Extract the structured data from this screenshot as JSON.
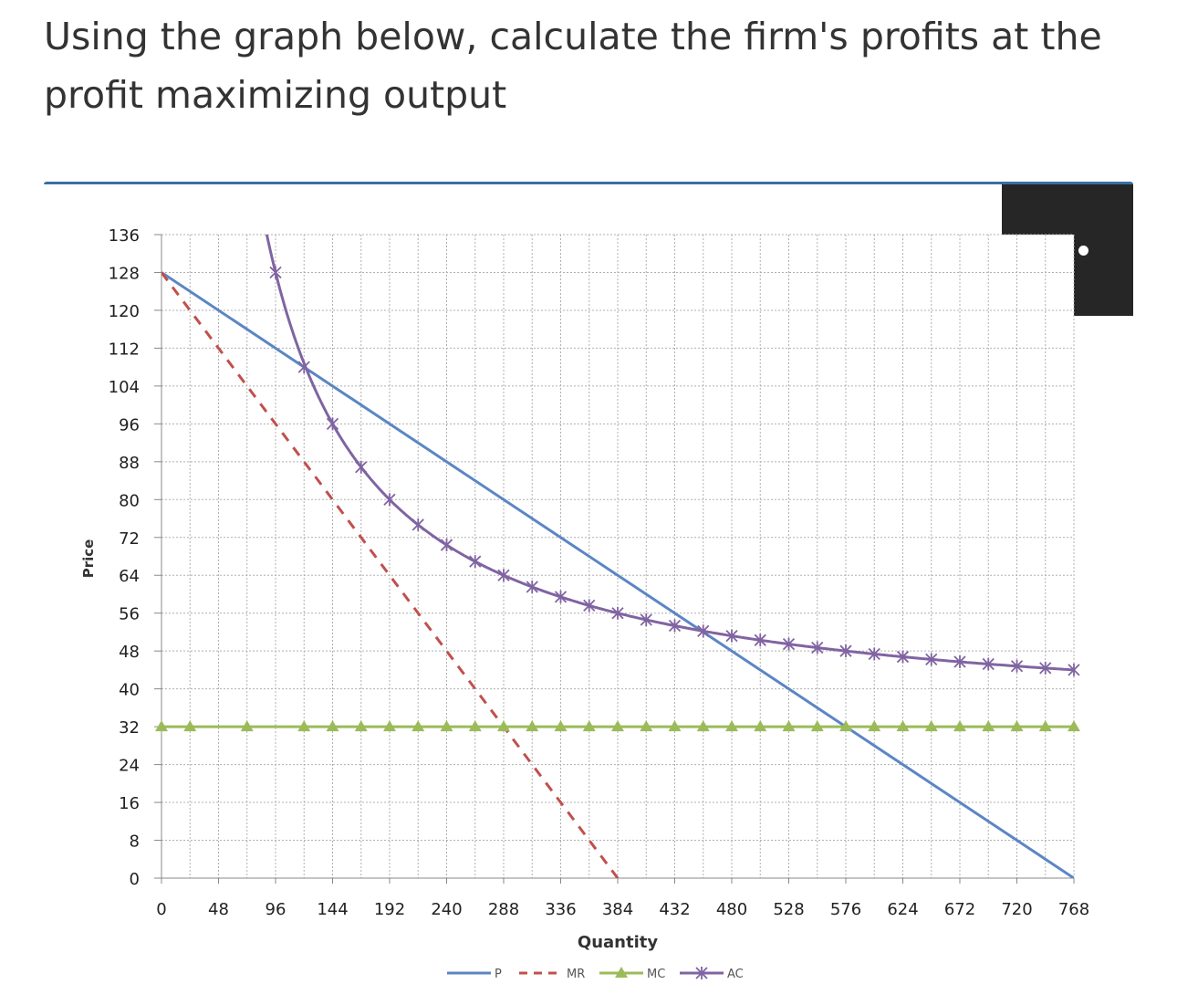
{
  "question": "Using the graph below, calculate the firm's profits at the profit maximizing output",
  "more_button": {
    "icon": "more-dots-icon"
  },
  "colors": {
    "P": "#5b86c4",
    "MR": "#c0504d",
    "MC": "#9bbb59",
    "AC": "#8064a2",
    "card_border": "#3a6ea5",
    "button_bg": "#262626"
  },
  "chart_data": {
    "type": "line",
    "xlabel": "Quantity",
    "ylabel": "Price",
    "xlim": [
      0,
      768
    ],
    "ylim": [
      0,
      136
    ],
    "x_ticks": [
      0,
      48,
      96,
      144,
      192,
      240,
      288,
      336,
      384,
      432,
      480,
      528,
      576,
      624,
      672,
      720,
      768
    ],
    "y_ticks": [
      0,
      8,
      16,
      24,
      32,
      40,
      48,
      56,
      64,
      72,
      80,
      88,
      96,
      104,
      112,
      120,
      128,
      136
    ],
    "grid": true,
    "legend_position": "bottom",
    "series": [
      {
        "name": "P",
        "style": "solid",
        "marker": "none",
        "x": [
          0,
          768
        ],
        "y": [
          128,
          0
        ]
      },
      {
        "name": "MR",
        "style": "dashed",
        "marker": "none",
        "x": [
          0,
          384
        ],
        "y": [
          128,
          0
        ]
      },
      {
        "name": "MC",
        "style": "solid",
        "marker": "triangle",
        "x": [
          0,
          24,
          72,
          120,
          144,
          168,
          192,
          216,
          240,
          264,
          288,
          312,
          336,
          360,
          384,
          408,
          432,
          456,
          480,
          504,
          528,
          552,
          576,
          600,
          624,
          648,
          672,
          696,
          720,
          744,
          768
        ],
        "y": [
          32,
          32,
          32,
          32,
          32,
          32,
          32,
          32,
          32,
          32,
          32,
          32,
          32,
          32,
          32,
          32,
          32,
          32,
          32,
          32,
          32,
          32,
          32,
          32,
          32,
          32,
          32,
          32,
          32,
          32,
          32
        ]
      },
      {
        "name": "AC",
        "style": "solid",
        "marker": "x",
        "x": [
          96,
          120,
          144,
          168,
          192,
          216,
          240,
          264,
          288,
          312,
          336,
          360,
          384,
          408,
          432,
          456,
          480,
          504,
          528,
          552,
          576,
          600,
          624,
          648,
          672,
          696,
          720,
          744,
          768
        ],
        "y": [
          128,
          108,
          96,
          86.86,
          80,
          74.67,
          70.4,
          66.91,
          64,
          61.54,
          59.43,
          57.6,
          56,
          54.59,
          53.33,
          52.21,
          51.2,
          50.29,
          49.45,
          48.7,
          48,
          47.36,
          46.77,
          46.22,
          45.71,
          45.24,
          44.8,
          44.39,
          44
        ]
      }
    ]
  }
}
